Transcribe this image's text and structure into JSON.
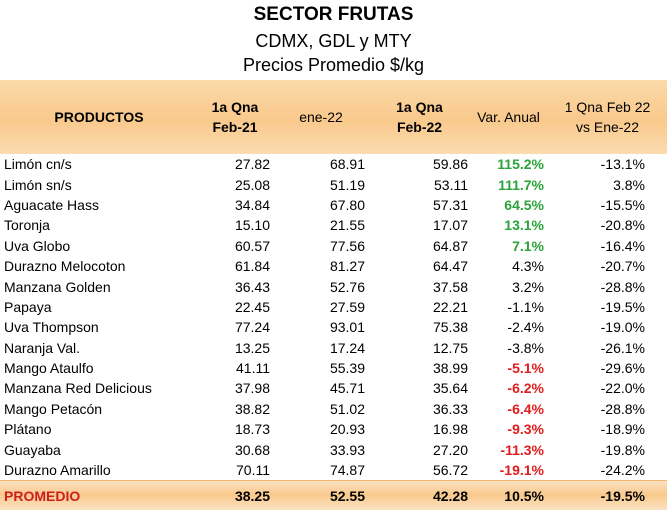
{
  "header": {
    "title": "SECTOR FRUTAS",
    "subtitle": "CDMX, GDL y MTY",
    "subtitle2": "Precios Promedio $/kg"
  },
  "columns": {
    "productos": "PRODUCTOS",
    "c1_line1": "1a Qna",
    "c1_line2": "Feb-21",
    "c2": "ene-22",
    "c3_line1": "1a Qna",
    "c3_line2": "Feb-22",
    "c4": "Var. Anual",
    "c5_line1": "1 Qna Feb 22",
    "c5_line2": "vs Ene-22"
  },
  "colors": {
    "positive": "#2aa33a",
    "negative": "#e01c1c",
    "header_bg": "#f9c98c"
  },
  "rows": [
    {
      "name": "Limón cn/s",
      "feb21": "27.82",
      "ene22": "68.91",
      "feb22": "59.86",
      "var": "115.2%",
      "var_style": "pos",
      "qna": "-13.1%"
    },
    {
      "name": "Limón sn/s",
      "feb21": "25.08",
      "ene22": "51.19",
      "feb22": "53.11",
      "var": "111.7%",
      "var_style": "pos",
      "qna": "3.8%"
    },
    {
      "name": "Aguacate Hass",
      "feb21": "34.84",
      "ene22": "67.80",
      "feb22": "57.31",
      "var": "64.5%",
      "var_style": "pos",
      "qna": "-15.5%"
    },
    {
      "name": "Toronja",
      "feb21": "15.10",
      "ene22": "21.55",
      "feb22": "17.07",
      "var": "13.1%",
      "var_style": "pos",
      "qna": "-20.8%"
    },
    {
      "name": "Uva Globo",
      "feb21": "60.57",
      "ene22": "77.56",
      "feb22": "64.87",
      "var": "7.1%",
      "var_style": "pos",
      "qna": "-16.4%"
    },
    {
      "name": "Durazno Melocoton",
      "feb21": "61.84",
      "ene22": "81.27",
      "feb22": "64.47",
      "var": "4.3%",
      "var_style": "plain",
      "qna": "-20.7%"
    },
    {
      "name": "Manzana Golden",
      "feb21": "36.43",
      "ene22": "52.76",
      "feb22": "37.58",
      "var": "3.2%",
      "var_style": "plain",
      "qna": "-28.8%"
    },
    {
      "name": "Papaya",
      "feb21": "22.45",
      "ene22": "27.59",
      "feb22": "22.21",
      "var": "-1.1%",
      "var_style": "plain",
      "qna": "-19.5%"
    },
    {
      "name": "Uva Thompson",
      "feb21": "77.24",
      "ene22": "93.01",
      "feb22": "75.38",
      "var": "-2.4%",
      "var_style": "plain",
      "qna": "-19.0%"
    },
    {
      "name": "Naranja Val.",
      "feb21": "13.25",
      "ene22": "17.24",
      "feb22": "12.75",
      "var": "-3.8%",
      "var_style": "plain",
      "qna": "-26.1%"
    },
    {
      "name": "Mango Ataulfo",
      "feb21": "41.11",
      "ene22": "55.39",
      "feb22": "38.99",
      "var": "-5.1%",
      "var_style": "neg",
      "qna": "-29.6%"
    },
    {
      "name": "Manzana Red Delicious",
      "feb21": "37.98",
      "ene22": "45.71",
      "feb22": "35.64",
      "var": "-6.2%",
      "var_style": "neg",
      "qna": "-22.0%"
    },
    {
      "name": "Mango Petacón",
      "feb21": "38.82",
      "ene22": "51.02",
      "feb22": "36.33",
      "var": "-6.4%",
      "var_style": "neg",
      "qna": "-28.8%"
    },
    {
      "name": "Plátano",
      "feb21": "18.73",
      "ene22": "20.93",
      "feb22": "16.98",
      "var": "-9.3%",
      "var_style": "neg",
      "qna": "-18.9%"
    },
    {
      "name": "Guayaba",
      "feb21": "30.68",
      "ene22": "33.93",
      "feb22": "27.20",
      "var": "-11.3%",
      "var_style": "neg",
      "qna": "-19.8%"
    },
    {
      "name": "Durazno Amarillo",
      "feb21": "70.11",
      "ene22": "74.87",
      "feb22": "56.72",
      "var": "-19.1%",
      "var_style": "neg",
      "qna": "-24.2%"
    }
  ],
  "footer": {
    "name": "PROMEDIO",
    "feb21": "38.25",
    "ene22": "52.55",
    "feb22": "42.28",
    "var": "10.5%",
    "qna": "-19.5%"
  }
}
